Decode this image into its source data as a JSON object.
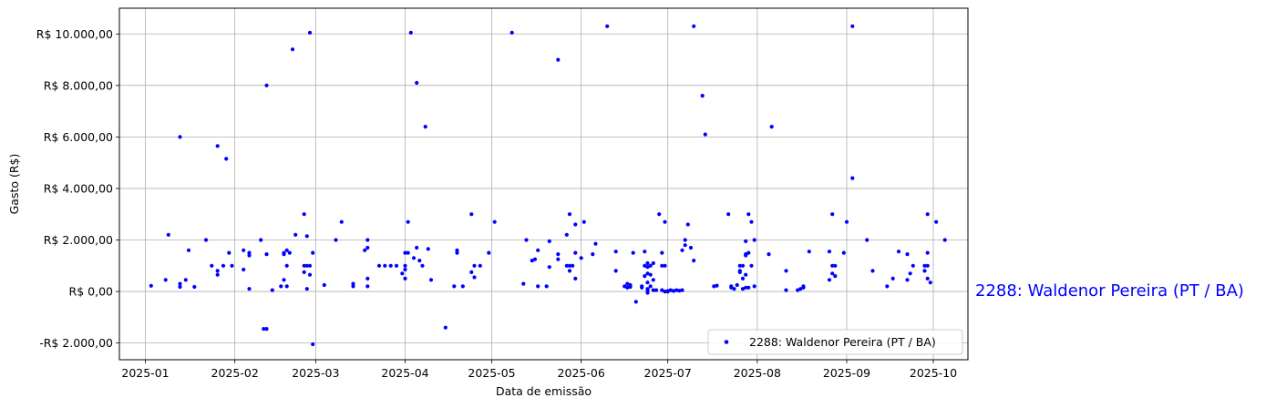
{
  "chart_data": {
    "type": "scatter",
    "xlabel": "Data de emissão",
    "ylabel": "Gasto (R$)",
    "xlim": [
      "2024-12-23",
      "2025-10-13"
    ],
    "ylim": [
      -2650,
      11000
    ],
    "x_ticks": [
      "2025-01-01",
      "2025-02-01",
      "2025-03-01",
      "2025-04-01",
      "2025-05-01",
      "2025-06-01",
      "2025-07-01",
      "2025-08-01",
      "2025-09-01",
      "2025-10-01"
    ],
    "x_tick_labels": [
      "2025-01",
      "2025-02",
      "2025-03",
      "2025-04",
      "2025-05",
      "2025-06",
      "2025-07",
      "2025-08",
      "2025-09",
      "2025-10"
    ],
    "y_ticks": [
      -2000,
      0,
      2000,
      4000,
      6000,
      8000,
      10000
    ],
    "y_tick_labels": [
      "-R$ 2.000,00",
      "R$ 0,00",
      "R$ 2.000,00",
      "R$ 4.000,00",
      "R$ 6.000,00",
      "R$ 8.000,00",
      "R$ 10.000,00"
    ],
    "grid": true,
    "legend_position": "lower-right",
    "side_label": "2288: Waldenor Pereira (PT / BA)",
    "series": [
      {
        "name": "2288: Waldenor Pereira (PT / BA)",
        "color": "#0000ff",
        "points": [
          [
            "2025-01-03",
            220
          ],
          [
            "2025-01-08",
            450
          ],
          [
            "2025-01-09",
            2200
          ],
          [
            "2025-01-13",
            6000
          ],
          [
            "2025-01-13",
            180
          ],
          [
            "2025-01-13",
            300
          ],
          [
            "2025-01-15",
            450
          ],
          [
            "2025-01-16",
            1600
          ],
          [
            "2025-01-18",
            180
          ],
          [
            "2025-01-22",
            2000
          ],
          [
            "2025-01-24",
            1000
          ],
          [
            "2025-01-26",
            5650
          ],
          [
            "2025-01-26",
            800
          ],
          [
            "2025-01-26",
            650
          ],
          [
            "2025-01-28",
            1000
          ],
          [
            "2025-01-29",
            5150
          ],
          [
            "2025-01-30",
            1500
          ],
          [
            "2025-01-31",
            1000
          ],
          [
            "2025-02-04",
            1600
          ],
          [
            "2025-02-04",
            850
          ],
          [
            "2025-02-06",
            100
          ],
          [
            "2025-02-06",
            1400
          ],
          [
            "2025-02-06",
            1500
          ],
          [
            "2025-02-10",
            2000
          ],
          [
            "2025-02-11",
            -1450
          ],
          [
            "2025-02-12",
            8000
          ],
          [
            "2025-02-12",
            1450
          ],
          [
            "2025-02-12",
            -1450
          ],
          [
            "2025-02-14",
            50
          ],
          [
            "2025-02-17",
            200
          ],
          [
            "2025-02-18",
            1500
          ],
          [
            "2025-02-18",
            1450
          ],
          [
            "2025-02-18",
            450
          ],
          [
            "2025-02-19",
            1600
          ],
          [
            "2025-02-19",
            1000
          ],
          [
            "2025-02-19",
            200
          ],
          [
            "2025-02-20",
            1500
          ],
          [
            "2025-02-21",
            9400
          ],
          [
            "2025-02-22",
            2200
          ],
          [
            "2025-02-25",
            1000
          ],
          [
            "2025-02-25",
            750
          ],
          [
            "2025-02-25",
            3000
          ],
          [
            "2025-02-26",
            2150
          ],
          [
            "2025-02-26",
            1000
          ],
          [
            "2025-02-26",
            100
          ],
          [
            "2025-02-27",
            1000
          ],
          [
            "2025-02-27",
            650
          ],
          [
            "2025-02-27",
            10050
          ],
          [
            "2025-02-28",
            -2050
          ],
          [
            "2025-02-28",
            1500
          ],
          [
            "2025-03-04",
            250
          ],
          [
            "2025-03-08",
            2000
          ],
          [
            "2025-03-10",
            2700
          ],
          [
            "2025-03-14",
            200
          ],
          [
            "2025-03-14",
            300
          ],
          [
            "2025-03-18",
            1600
          ],
          [
            "2025-03-19",
            1700
          ],
          [
            "2025-03-19",
            2000
          ],
          [
            "2025-03-19",
            500
          ],
          [
            "2025-03-19",
            200
          ],
          [
            "2025-03-23",
            1000
          ],
          [
            "2025-03-25",
            1000
          ],
          [
            "2025-03-27",
            1000
          ],
          [
            "2025-03-29",
            1000
          ],
          [
            "2025-03-31",
            700
          ],
          [
            "2025-04-01",
            1000
          ],
          [
            "2025-04-01",
            500
          ],
          [
            "2025-04-01",
            850
          ],
          [
            "2025-04-01",
            1500
          ],
          [
            "2025-04-02",
            1500
          ],
          [
            "2025-04-02",
            2700
          ],
          [
            "2025-04-03",
            10050
          ],
          [
            "2025-04-04",
            1300
          ],
          [
            "2025-04-05",
            1700
          ],
          [
            "2025-04-05",
            8100
          ],
          [
            "2025-04-06",
            1200
          ],
          [
            "2025-04-07",
            1000
          ],
          [
            "2025-04-08",
            6400
          ],
          [
            "2025-04-09",
            1650
          ],
          [
            "2025-04-10",
            450
          ],
          [
            "2025-04-15",
            -1400
          ],
          [
            "2025-04-18",
            200
          ],
          [
            "2025-04-19",
            1600
          ],
          [
            "2025-04-19",
            1500
          ],
          [
            "2025-04-21",
            200
          ],
          [
            "2025-04-24",
            750
          ],
          [
            "2025-04-24",
            3000
          ],
          [
            "2025-04-25",
            1000
          ],
          [
            "2025-04-25",
            550
          ],
          [
            "2025-04-27",
            1000
          ],
          [
            "2025-04-30",
            1500
          ],
          [
            "2025-05-02",
            2700
          ],
          [
            "2025-05-08",
            10050
          ],
          [
            "2025-05-12",
            300
          ],
          [
            "2025-05-13",
            2000
          ],
          [
            "2025-05-15",
            1200
          ],
          [
            "2025-05-16",
            1250
          ],
          [
            "2025-05-17",
            1600
          ],
          [
            "2025-05-17",
            200
          ],
          [
            "2025-05-20",
            200
          ],
          [
            "2025-05-21",
            1950
          ],
          [
            "2025-05-21",
            950
          ],
          [
            "2025-05-24",
            9000
          ],
          [
            "2025-05-24",
            1450
          ],
          [
            "2025-05-24",
            1250
          ],
          [
            "2025-05-27",
            2200
          ],
          [
            "2025-05-27",
            1000
          ],
          [
            "2025-05-28",
            3000
          ],
          [
            "2025-05-28",
            800
          ],
          [
            "2025-05-28",
            1000
          ],
          [
            "2025-05-29",
            1000
          ],
          [
            "2025-05-30",
            2600
          ],
          [
            "2025-05-30",
            500
          ],
          [
            "2025-05-30",
            1500
          ],
          [
            "2025-06-01",
            1300
          ],
          [
            "2025-06-02",
            2700
          ],
          [
            "2025-06-05",
            1450
          ],
          [
            "2025-06-06",
            1850
          ],
          [
            "2025-06-10",
            10300
          ],
          [
            "2025-06-13",
            1550
          ],
          [
            "2025-06-13",
            800
          ],
          [
            "2025-06-16",
            200
          ],
          [
            "2025-06-17",
            300
          ],
          [
            "2025-06-17",
            150
          ],
          [
            "2025-06-18",
            250
          ],
          [
            "2025-06-18",
            180
          ],
          [
            "2025-06-18",
            200
          ],
          [
            "2025-06-19",
            1500
          ],
          [
            "2025-06-20",
            -400
          ],
          [
            "2025-06-22",
            200
          ],
          [
            "2025-06-22",
            150
          ],
          [
            "2025-06-23",
            1550
          ],
          [
            "2025-06-23",
            600
          ],
          [
            "2025-06-23",
            1000
          ],
          [
            "2025-06-24",
            700
          ],
          [
            "2025-06-24",
            950
          ],
          [
            "2025-06-24",
            1100
          ],
          [
            "2025-06-24",
            350
          ],
          [
            "2025-06-24",
            100
          ],
          [
            "2025-06-24",
            50
          ],
          [
            "2025-06-24",
            -50
          ],
          [
            "2025-06-25",
            650
          ],
          [
            "2025-06-25",
            1000
          ],
          [
            "2025-06-25",
            200
          ],
          [
            "2025-06-26",
            450
          ],
          [
            "2025-06-26",
            1100
          ],
          [
            "2025-06-26",
            50
          ],
          [
            "2025-06-27",
            50
          ],
          [
            "2025-06-28",
            3000
          ],
          [
            "2025-06-29",
            1500
          ],
          [
            "2025-06-29",
            1000
          ],
          [
            "2025-06-29",
            50
          ],
          [
            "2025-06-30",
            2700
          ],
          [
            "2025-06-30",
            1000
          ],
          [
            "2025-06-30",
            0
          ],
          [
            "2025-07-01",
            20
          ],
          [
            "2025-07-01",
            0
          ],
          [
            "2025-07-02",
            50
          ],
          [
            "2025-07-03",
            20
          ],
          [
            "2025-07-04",
            50
          ],
          [
            "2025-07-05",
            30
          ],
          [
            "2025-07-06",
            50
          ],
          [
            "2025-07-06",
            1600
          ],
          [
            "2025-07-07",
            2000
          ],
          [
            "2025-07-07",
            1800
          ],
          [
            "2025-07-08",
            2600
          ],
          [
            "2025-07-09",
            1700
          ],
          [
            "2025-07-10",
            10300
          ],
          [
            "2025-07-10",
            1200
          ],
          [
            "2025-07-13",
            7600
          ],
          [
            "2025-07-14",
            6100
          ],
          [
            "2025-07-17",
            200
          ],
          [
            "2025-07-18",
            230
          ],
          [
            "2025-07-22",
            3000
          ],
          [
            "2025-07-23",
            200
          ],
          [
            "2025-07-23",
            150
          ],
          [
            "2025-07-24",
            100
          ],
          [
            "2025-07-25",
            250
          ],
          [
            "2025-07-26",
            1000
          ],
          [
            "2025-07-26",
            750
          ],
          [
            "2025-07-26",
            800
          ],
          [
            "2025-07-27",
            100
          ],
          [
            "2025-07-27",
            500
          ],
          [
            "2025-07-27",
            1000
          ],
          [
            "2025-07-28",
            1400
          ],
          [
            "2025-07-28",
            1450
          ],
          [
            "2025-07-28",
            1950
          ],
          [
            "2025-07-28",
            150
          ],
          [
            "2025-07-28",
            650
          ],
          [
            "2025-07-29",
            3000
          ],
          [
            "2025-07-29",
            1500
          ],
          [
            "2025-07-29",
            150
          ],
          [
            "2025-07-30",
            2700
          ],
          [
            "2025-07-30",
            1000
          ],
          [
            "2025-07-31",
            2000
          ],
          [
            "2025-07-31",
            200
          ],
          [
            "2025-08-05",
            1450
          ],
          [
            "2025-08-06",
            6400
          ],
          [
            "2025-08-11",
            800
          ],
          [
            "2025-08-11",
            50
          ],
          [
            "2025-08-15",
            50
          ],
          [
            "2025-08-16",
            100
          ],
          [
            "2025-08-17",
            150
          ],
          [
            "2025-08-17",
            200
          ],
          [
            "2025-08-19",
            1550
          ],
          [
            "2025-08-26",
            1550
          ],
          [
            "2025-08-26",
            450
          ],
          [
            "2025-08-27",
            3000
          ],
          [
            "2025-08-27",
            1000
          ],
          [
            "2025-08-27",
            700
          ],
          [
            "2025-08-28",
            600
          ],
          [
            "2025-08-28",
            1000
          ],
          [
            "2025-08-31",
            1500
          ],
          [
            "2025-09-01",
            2700
          ],
          [
            "2025-09-03",
            10300
          ],
          [
            "2025-09-03",
            4400
          ],
          [
            "2025-09-08",
            2000
          ],
          [
            "2025-09-10",
            800
          ],
          [
            "2025-09-15",
            200
          ],
          [
            "2025-09-17",
            500
          ],
          [
            "2025-09-19",
            1550
          ],
          [
            "2025-09-22",
            1450
          ],
          [
            "2025-09-22",
            450
          ],
          [
            "2025-09-23",
            700
          ],
          [
            "2025-09-24",
            1000
          ],
          [
            "2025-09-28",
            800
          ],
          [
            "2025-09-28",
            1000
          ],
          [
            "2025-09-29",
            3000
          ],
          [
            "2025-09-29",
            1500
          ],
          [
            "2025-09-29",
            500
          ],
          [
            "2025-09-29",
            1000
          ],
          [
            "2025-09-30",
            350
          ],
          [
            "2025-10-02",
            2700
          ],
          [
            "2025-10-05",
            2000
          ]
        ]
      }
    ]
  }
}
